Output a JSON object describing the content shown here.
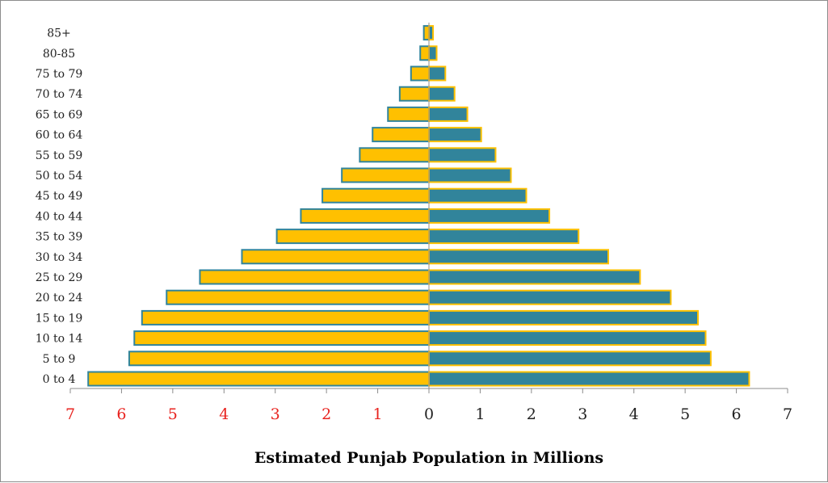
{
  "chart_data": {
    "type": "bar",
    "orientation": "horizontal",
    "layout": "population-pyramid",
    "title": "",
    "xlabel": "Estimated Punjab Population in Millions",
    "ylabel": "",
    "xlim": [
      -7,
      7
    ],
    "x_ticks": [
      {
        "value": -7,
        "label": "7"
      },
      {
        "value": -6,
        "label": "6"
      },
      {
        "value": -5,
        "label": "5"
      },
      {
        "value": -4,
        "label": "4"
      },
      {
        "value": -3,
        "label": "3"
      },
      {
        "value": -2,
        "label": "2"
      },
      {
        "value": -1,
        "label": "1"
      },
      {
        "value": 0,
        "label": "0"
      },
      {
        "value": 1,
        "label": "1"
      },
      {
        "value": 2,
        "label": "2"
      },
      {
        "value": 3,
        "label": "3"
      },
      {
        "value": 4,
        "label": "4"
      },
      {
        "value": 5,
        "label": "5"
      },
      {
        "value": 6,
        "label": "6"
      },
      {
        "value": 7,
        "label": "7"
      }
    ],
    "negative_tick_color": "#e8231f",
    "positive_tick_color": "#222222",
    "grid": false,
    "legend": "none",
    "categories": [
      "0 to 4",
      "5 to 9",
      "10 to 14",
      "15 to 19",
      "20 to 24",
      "25 to 29",
      "30 to 34",
      "35 to 39",
      "40 to 44",
      "45 to 49",
      "50 to 54",
      "55 to 59",
      "60 to 64",
      "65 to 69",
      "70 to 74",
      "75 to 79",
      "80-85",
      "85+"
    ],
    "series": [
      {
        "side": "left",
        "color": "#ffc000",
        "border_color": "#31849b",
        "values": [
          6.65,
          5.85,
          5.75,
          5.6,
          5.12,
          4.47,
          3.65,
          2.97,
          2.5,
          2.08,
          1.7,
          1.35,
          1.1,
          0.8,
          0.57,
          0.35,
          0.17,
          0.1
        ]
      },
      {
        "side": "right",
        "color": "#31849b",
        "border_color": "#ffc000",
        "values": [
          6.25,
          5.5,
          5.4,
          5.25,
          4.72,
          4.12,
          3.5,
          2.92,
          2.35,
          1.9,
          1.6,
          1.3,
          1.02,
          0.75,
          0.5,
          0.32,
          0.15,
          0.08
        ]
      }
    ]
  }
}
